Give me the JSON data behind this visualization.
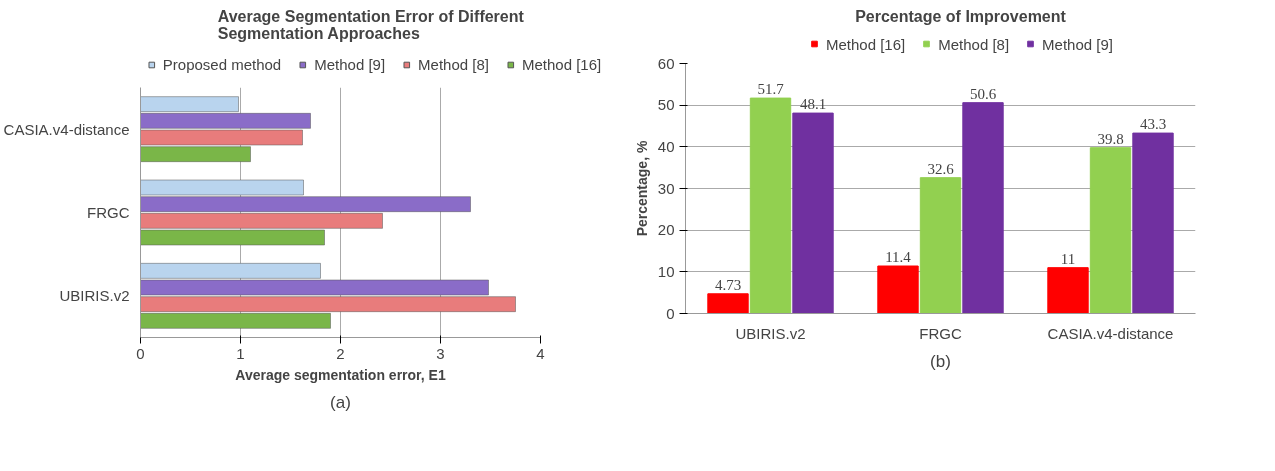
{
  "chart_data": [
    {
      "type": "bar",
      "orientation": "horizontal",
      "title": "Average  Segmentation Error of Different Segmentation Approaches",
      "xlabel": "Average segmentation error, E1",
      "categories": [
        "CASIA.v4-distance",
        "FRGC",
        "UBIRIS.v2"
      ],
      "xlim": [
        0,
        4
      ],
      "xticks": [
        0,
        1,
        2,
        3,
        4
      ],
      "grid": "x",
      "legend": "top",
      "annotations": [
        "(a)"
      ],
      "series": [
        {
          "name": "Proposed method",
          "color": "#b9d4ee",
          "values": [
            0.98,
            1.63,
            1.8
          ]
        },
        {
          "name": "Method [9]",
          "color": "#8a6cc8",
          "values": [
            1.7,
            3.3,
            3.48
          ]
        },
        {
          "name": "Method [8]",
          "color": "#e87c7c",
          "values": [
            1.62,
            2.42,
            3.75
          ]
        },
        {
          "name": "Method [16]",
          "color": "#7ab648",
          "values": [
            1.1,
            1.84,
            1.9
          ]
        }
      ]
    },
    {
      "type": "bar",
      "title": "Percentage of Improvement",
      "ylabel": "Percentage, %",
      "categories": [
        "UBIRIS.v2",
        "FRGC",
        "CASIA.v4-distance"
      ],
      "ylim": [
        0,
        60
      ],
      "yticks": [
        0,
        10,
        20,
        30,
        40,
        50,
        60
      ],
      "grid": "y",
      "legend": "top",
      "data_labels": true,
      "annotations": [
        "(b)"
      ],
      "series": [
        {
          "name": "Method [16]",
          "color": "#ff0000",
          "values": [
            4.73,
            11.4,
            11
          ]
        },
        {
          "name": "Method [8]",
          "color": "#92d050",
          "values": [
            51.7,
            32.6,
            39.8
          ]
        },
        {
          "name": "Method [9]",
          "color": "#7030a0",
          "values": [
            48.1,
            50.6,
            43.3
          ]
        }
      ]
    }
  ]
}
